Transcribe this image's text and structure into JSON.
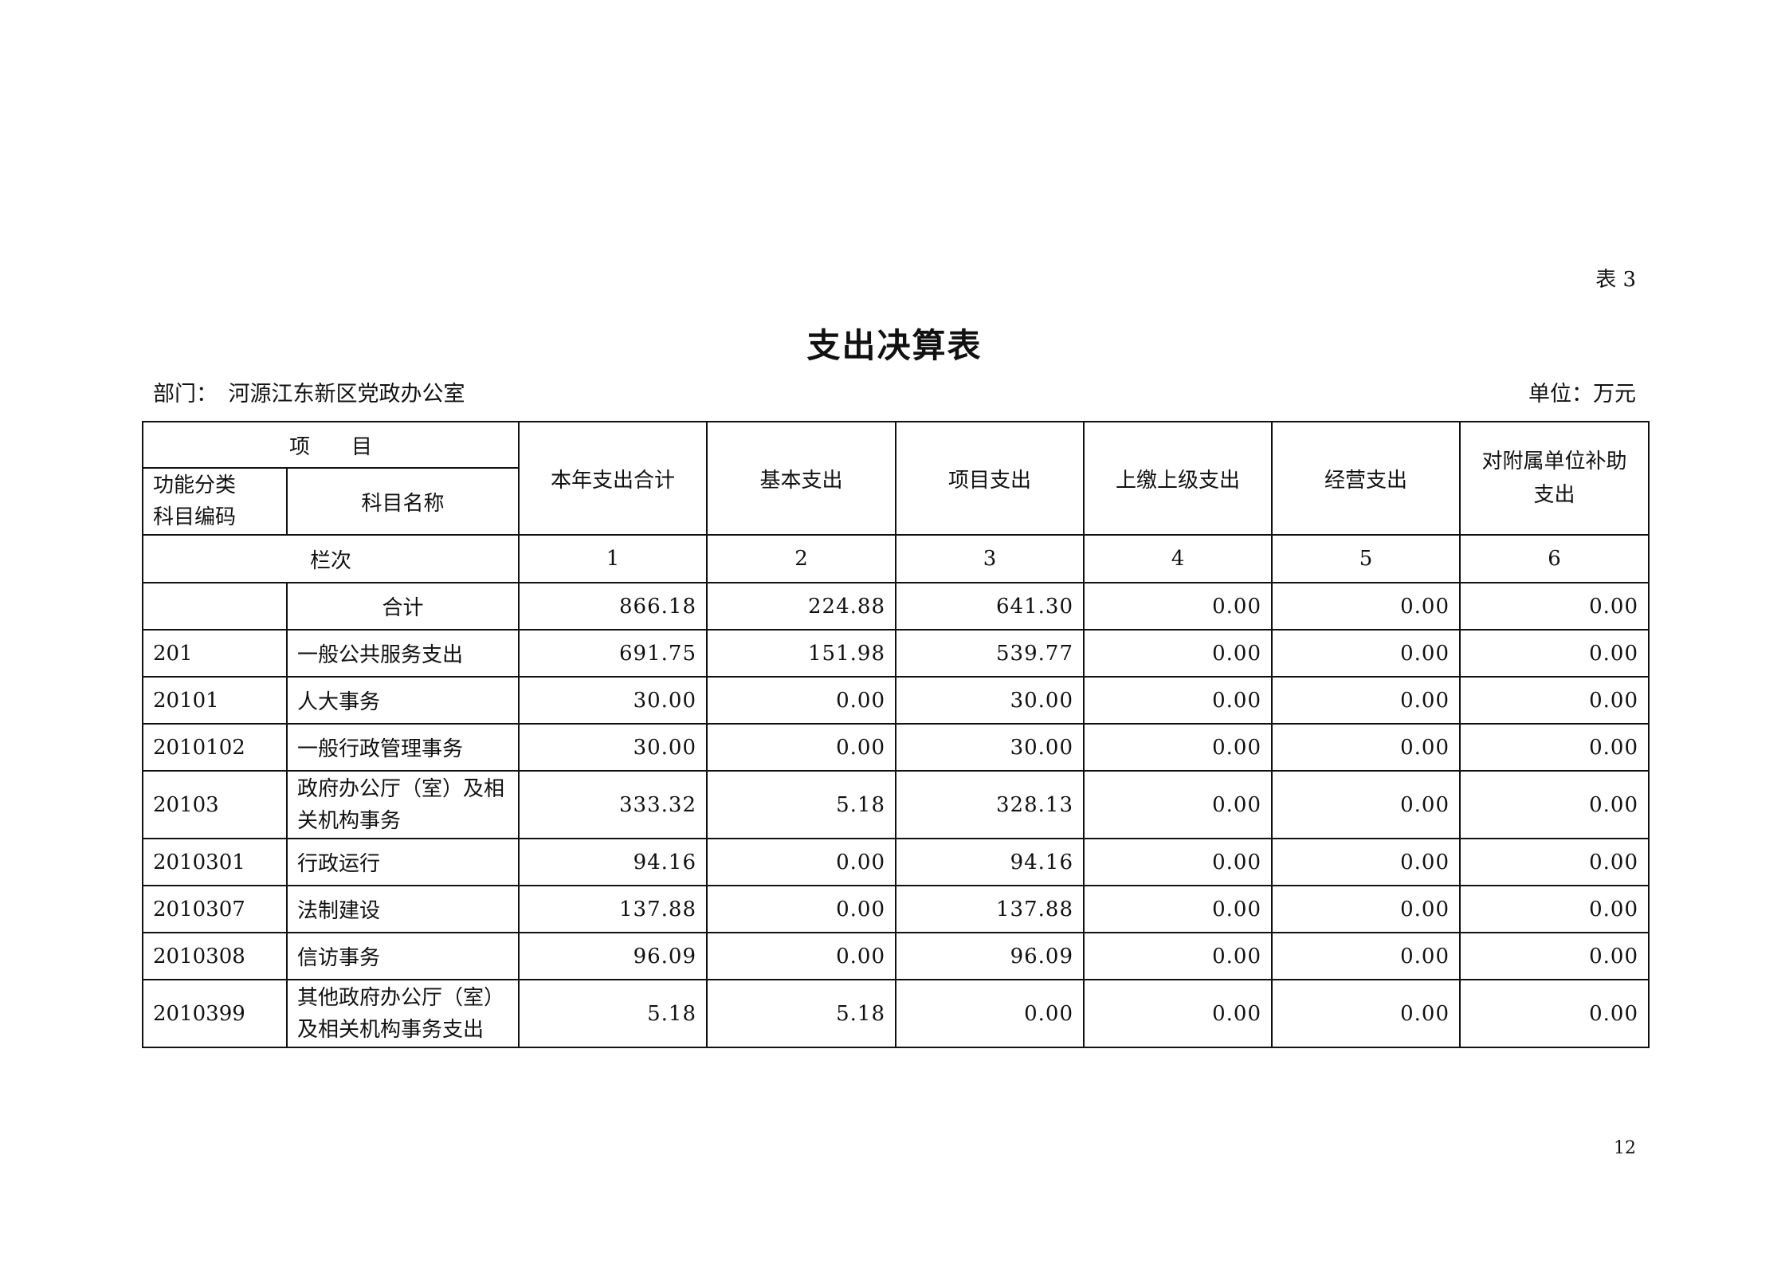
{
  "table_no": "表 3",
  "title": "支出决算表",
  "department": "部门：　河源江东新区党政办公室",
  "unit": "单位：万元",
  "header": {
    "item": "项　　目",
    "code": "功能分类科目编码",
    "name": "科目名称",
    "columns": [
      "本年支出合计",
      "基本支出",
      "项目支出",
      "上缴上级支出",
      "经营支出",
      "对附属单位补助支出"
    ],
    "row_label": "栏次",
    "column_numbers": [
      "1",
      "2",
      "3",
      "4",
      "5",
      "6"
    ]
  },
  "rows": [
    {
      "code": "",
      "name": "合计",
      "values": [
        "866.18",
        "224.88",
        "641.30",
        "0.00",
        "0.00",
        "0.00"
      ]
    },
    {
      "code": "201",
      "name": "一般公共服务支出",
      "values": [
        "691.75",
        "151.98",
        "539.77",
        "0.00",
        "0.00",
        "0.00"
      ]
    },
    {
      "code": "20101",
      "name": "人大事务",
      "values": [
        "30.00",
        "0.00",
        "30.00",
        "0.00",
        "0.00",
        "0.00"
      ]
    },
    {
      "code": "2010102",
      "name": "一般行政管理事务",
      "values": [
        "30.00",
        "0.00",
        "30.00",
        "0.00",
        "0.00",
        "0.00"
      ]
    },
    {
      "code": "20103",
      "name": "政府办公厅（室）及相关机构事务",
      "values": [
        "333.32",
        "5.18",
        "328.13",
        "0.00",
        "0.00",
        "0.00"
      ]
    },
    {
      "code": "2010301",
      "name": "行政运行",
      "values": [
        "94.16",
        "0.00",
        "94.16",
        "0.00",
        "0.00",
        "0.00"
      ]
    },
    {
      "code": "2010307",
      "name": "法制建设",
      "values": [
        "137.88",
        "0.00",
        "137.88",
        "0.00",
        "0.00",
        "0.00"
      ]
    },
    {
      "code": "2010308",
      "name": "信访事务",
      "values": [
        "96.09",
        "0.00",
        "96.09",
        "0.00",
        "0.00",
        "0.00"
      ]
    },
    {
      "code": "2010399",
      "name": "其他政府办公厅（室）及相关机构事务支出",
      "values": [
        "5.18",
        "5.18",
        "0.00",
        "0.00",
        "0.00",
        "0.00"
      ]
    }
  ],
  "page_number": "12"
}
